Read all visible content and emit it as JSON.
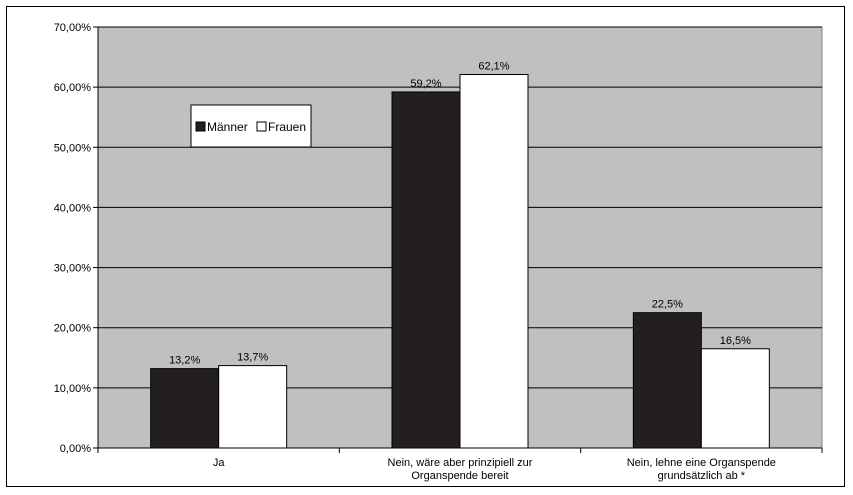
{
  "chart_data": {
    "type": "bar",
    "title": "",
    "xlabel": "",
    "ylabel": "",
    "ylim": [
      0,
      70
    ],
    "y_ticks": [
      "0,00%",
      "10,00%",
      "20,00%",
      "30,00%",
      "40,00%",
      "50,00%",
      "60,00%",
      "70,00%"
    ],
    "y_tick_values": [
      0,
      10,
      20,
      30,
      40,
      50,
      60,
      70
    ],
    "categories": [
      [
        "Ja"
      ],
      [
        "Nein, wäre aber prinzipiell zur",
        "Organspende bereit"
      ],
      [
        "Nein, lehne eine Organspende",
        "grundsätzlich ab *"
      ]
    ],
    "series": [
      {
        "name": "Männer",
        "values": [
          13.2,
          59.2,
          22.5
        ],
        "labels": [
          "13,2%",
          "59,2%",
          "22,5%"
        ],
        "color": "#231f20"
      },
      {
        "name": "Frauen",
        "values": [
          13.7,
          62.1,
          16.5
        ],
        "labels": [
          "13,7%",
          "62,1%",
          "16,5%"
        ],
        "color": "#ffffff"
      }
    ],
    "grid": true,
    "legend_position": "top-left",
    "plot_background": "#c0c0c0"
  }
}
